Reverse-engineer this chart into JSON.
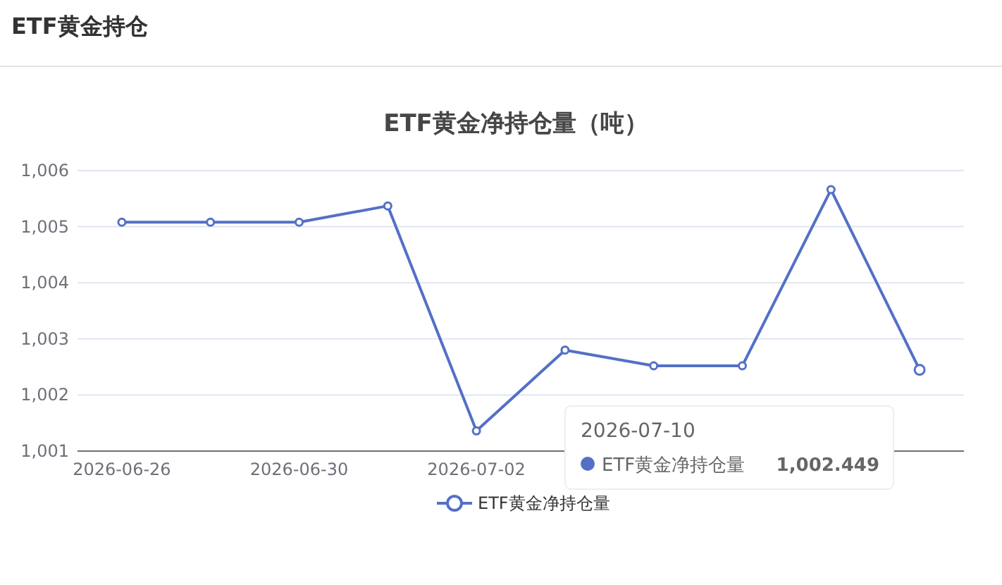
{
  "chart_data": {
    "type": "line",
    "title": "ETF黄金净持仓量（吨）",
    "annotations": [
      "ETF黄金持仓",
      "2026-07-10",
      "ETF黄金净持仓量",
      "1,002.449"
    ],
    "categories": [
      "2026-06-26",
      null,
      "2026-06-30",
      null,
      "2026-07-02",
      null,
      null,
      null,
      null,
      null
    ],
    "series": [
      {
        "name": "ETF黄金净持仓量",
        "color": "#5470c6",
        "values": [
          1005.08,
          1005.08,
          1005.08,
          1005.37,
          1001.36,
          1002.8,
          1002.52,
          1002.52,
          1005.66,
          1002.449
        ]
      }
    ],
    "ylim": [
      1001,
      1006
    ],
    "yticks": [
      {
        "value": 1001,
        "label": "1,001"
      },
      {
        "value": 1002,
        "label": "1,002"
      },
      {
        "value": 1003,
        "label": "1,003"
      },
      {
        "value": 1004,
        "label": "1,004"
      },
      {
        "value": 1005,
        "label": "1,005"
      },
      {
        "value": 1006,
        "label": "1,006"
      }
    ],
    "grid": "y",
    "legend": "bottom",
    "marker": "circle",
    "line_style": "solid"
  }
}
